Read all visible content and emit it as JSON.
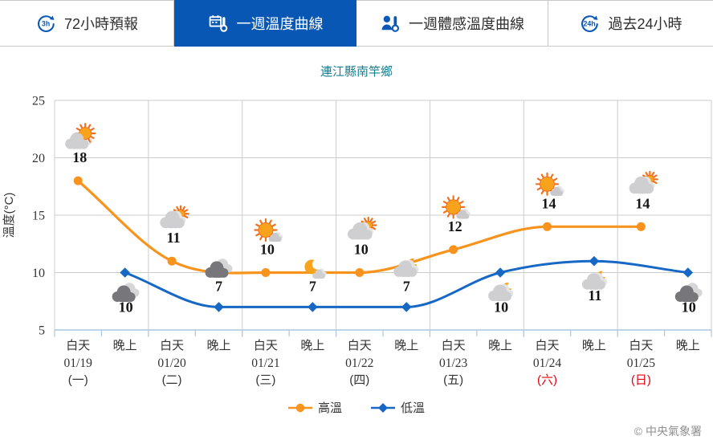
{
  "header": {
    "tabs": [
      {
        "label": "72小時預報",
        "icon": "clock-arrow",
        "badge": "3h",
        "active": false
      },
      {
        "label": "一週溫度曲線",
        "icon": "calendar-thermometer",
        "badge": "",
        "active": true
      },
      {
        "label": "一週體感溫度曲線",
        "icon": "person-thermometer",
        "badge": "",
        "active": false
      },
      {
        "label": "過去24小時",
        "icon": "clock-arrow",
        "badge": "24h",
        "active": false
      }
    ]
  },
  "title": "連江縣南竿鄉",
  "chart_data": {
    "type": "line",
    "title": "連江縣南竿鄉",
    "xlabel": "",
    "ylabel": "溫度(°C)",
    "ylim": [
      5,
      25
    ],
    "yticks": [
      25,
      20,
      15,
      10,
      5
    ],
    "grid": true,
    "legend_position": "bottom",
    "x_period_labels": [
      "白天",
      "晚上"
    ],
    "days": [
      {
        "date": "01/19",
        "weekday": "(一)",
        "weekend": false,
        "day": {
          "temp": 18,
          "icon": "sun-cloud",
          "label_side": "above"
        },
        "night": {
          "temp": 10,
          "icon": "cloud-dark",
          "label_side": "below"
        }
      },
      {
        "date": "01/20",
        "weekday": "(二)",
        "weekend": false,
        "day": {
          "temp": 11,
          "icon": "cloud-sun",
          "label_side": "above"
        },
        "night": {
          "temp": 7,
          "icon": "cloud-dark",
          "label_side": "above"
        }
      },
      {
        "date": "01/21",
        "weekday": "(三)",
        "weekend": false,
        "day": {
          "temp": 10,
          "icon": "sun-small-cloud",
          "label_side": "above"
        },
        "night": {
          "temp": 7,
          "icon": "moon-small-cloud",
          "label_side": "above"
        }
      },
      {
        "date": "01/22",
        "weekday": "(四)",
        "weekend": false,
        "day": {
          "temp": 10,
          "icon": "cloud-sun",
          "label_side": "above"
        },
        "night": {
          "temp": 7,
          "icon": "cloud-moon",
          "label_side": "above"
        }
      },
      {
        "date": "01/23",
        "weekday": "(五)",
        "weekend": false,
        "day": {
          "temp": 12,
          "icon": "sun-small-cloud",
          "label_side": "above"
        },
        "night": {
          "temp": 10,
          "icon": "cloud-moon",
          "label_side": "below"
        }
      },
      {
        "date": "01/24",
        "weekday": "(六)",
        "weekend": true,
        "day": {
          "temp": 14,
          "icon": "sun-small-cloud",
          "label_side": "above"
        },
        "night": {
          "temp": 11,
          "icon": "cloud-moon",
          "label_side": "below"
        }
      },
      {
        "date": "01/25",
        "weekday": "(日)",
        "weekend": true,
        "day": {
          "temp": 14,
          "icon": "cloud-sun",
          "label_side": "above"
        },
        "night": {
          "temp": 10,
          "icon": "cloud-dark",
          "label_side": "below"
        }
      }
    ],
    "series": [
      {
        "name": "高溫",
        "color": "#f8941d",
        "marker": "circle",
        "values": [
          18,
          11,
          10,
          10,
          12,
          14,
          14
        ]
      },
      {
        "name": "低溫",
        "color": "#1668c4",
        "marker": "diamond",
        "values": [
          10,
          7,
          7,
          7,
          10,
          11,
          10
        ]
      }
    ]
  },
  "copyright": "© 中央氣象署",
  "colors": {
    "active_tab": "#0857b4",
    "tab_icon_blue": "#0a58b8",
    "title_teal": "#17808f",
    "high_orange": "#f8941d",
    "low_blue": "#1668c4",
    "weekend_red": "#e60012",
    "grid_gray": "#cccccc",
    "axis_blue": "#aac6e2",
    "value_text": "#141414",
    "tick_text": "#333333"
  }
}
